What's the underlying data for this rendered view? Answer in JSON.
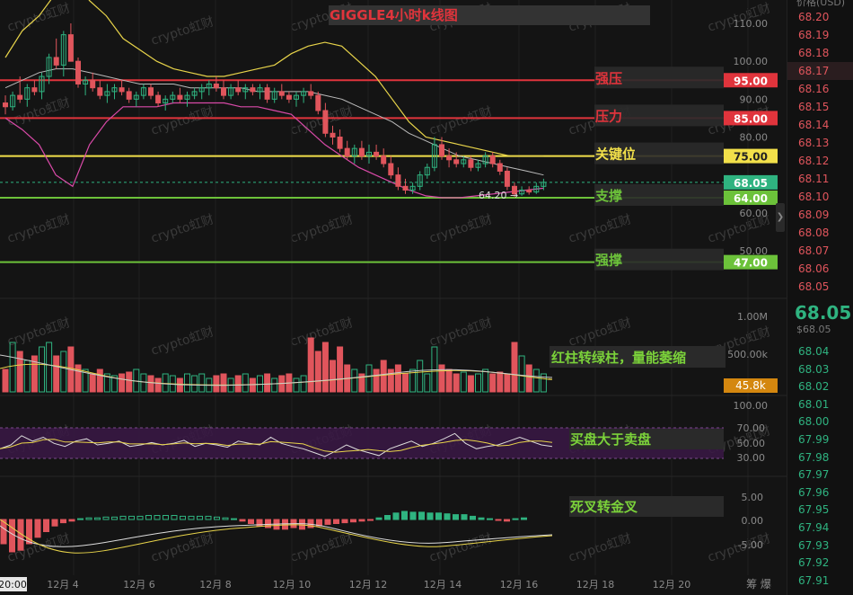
{
  "chart": {
    "title": "GIGGLE4小时k线图",
    "watermark": "crypto虹财",
    "price_axis_ticks": [
      "110.00",
      "100.00",
      "95.00",
      "90.00",
      "85.00",
      "80.00",
      "75.00",
      "68.05",
      "64.00",
      "60.00",
      "50.00",
      "47.00"
    ],
    "levels": [
      {
        "label": "强压",
        "value": "95.00",
        "color": "#e0343c"
      },
      {
        "label": "压力",
        "value": "85.00",
        "color": "#e0343c"
      },
      {
        "label": "关键位",
        "value": "75.00",
        "color": "#f2e04a"
      },
      {
        "label": "支撑",
        "value": "64.00",
        "color": "#6cc23a"
      },
      {
        "label": "强撑",
        "value": "47.00",
        "color": "#6cc23a"
      }
    ],
    "current_price_tag": "68.05",
    "low_annotation": "64.20",
    "volume": {
      "note": "红柱转绿柱，量能萎缩",
      "axis_ticks": [
        "1.00M",
        "500.00k",
        "100.00"
      ],
      "current": "45.8k"
    },
    "rsi": {
      "note": "买盘大于卖盘",
      "axis_ticks": [
        "70.00",
        "50.00",
        "30.00"
      ]
    },
    "macd": {
      "note": "死叉转金叉",
      "axis_ticks": [
        "5.00",
        "0.00",
        "-5.00"
      ]
    },
    "time_axis": [
      "20:00",
      "12月 4",
      "12月 6",
      "12月 8",
      "12月 10",
      "12月 12",
      "12月 14",
      "12月 16",
      "12月 18",
      "12月 20"
    ],
    "time_axis_right": "筹  爆",
    "colors": {
      "up": "#2fb380",
      "down": "#e0555c",
      "background": "#141414"
    }
  },
  "orderbook": {
    "header": "价格(USD)",
    "asks": [
      "68.20",
      "68.19",
      "68.18",
      "68.17",
      "68.16",
      "68.15",
      "68.14",
      "68.13",
      "68.12",
      "68.11",
      "68.10",
      "68.09",
      "68.08",
      "68.07",
      "68.06",
      "68.05"
    ],
    "last_price": "68.05",
    "last_price_sub": "$68.05",
    "bids": [
      "68.04",
      "68.03",
      "68.02",
      "68.01",
      "68.00",
      "67.99",
      "67.98",
      "67.97",
      "67.96",
      "67.95",
      "67.94",
      "67.93",
      "67.92",
      "67.91"
    ]
  }
}
